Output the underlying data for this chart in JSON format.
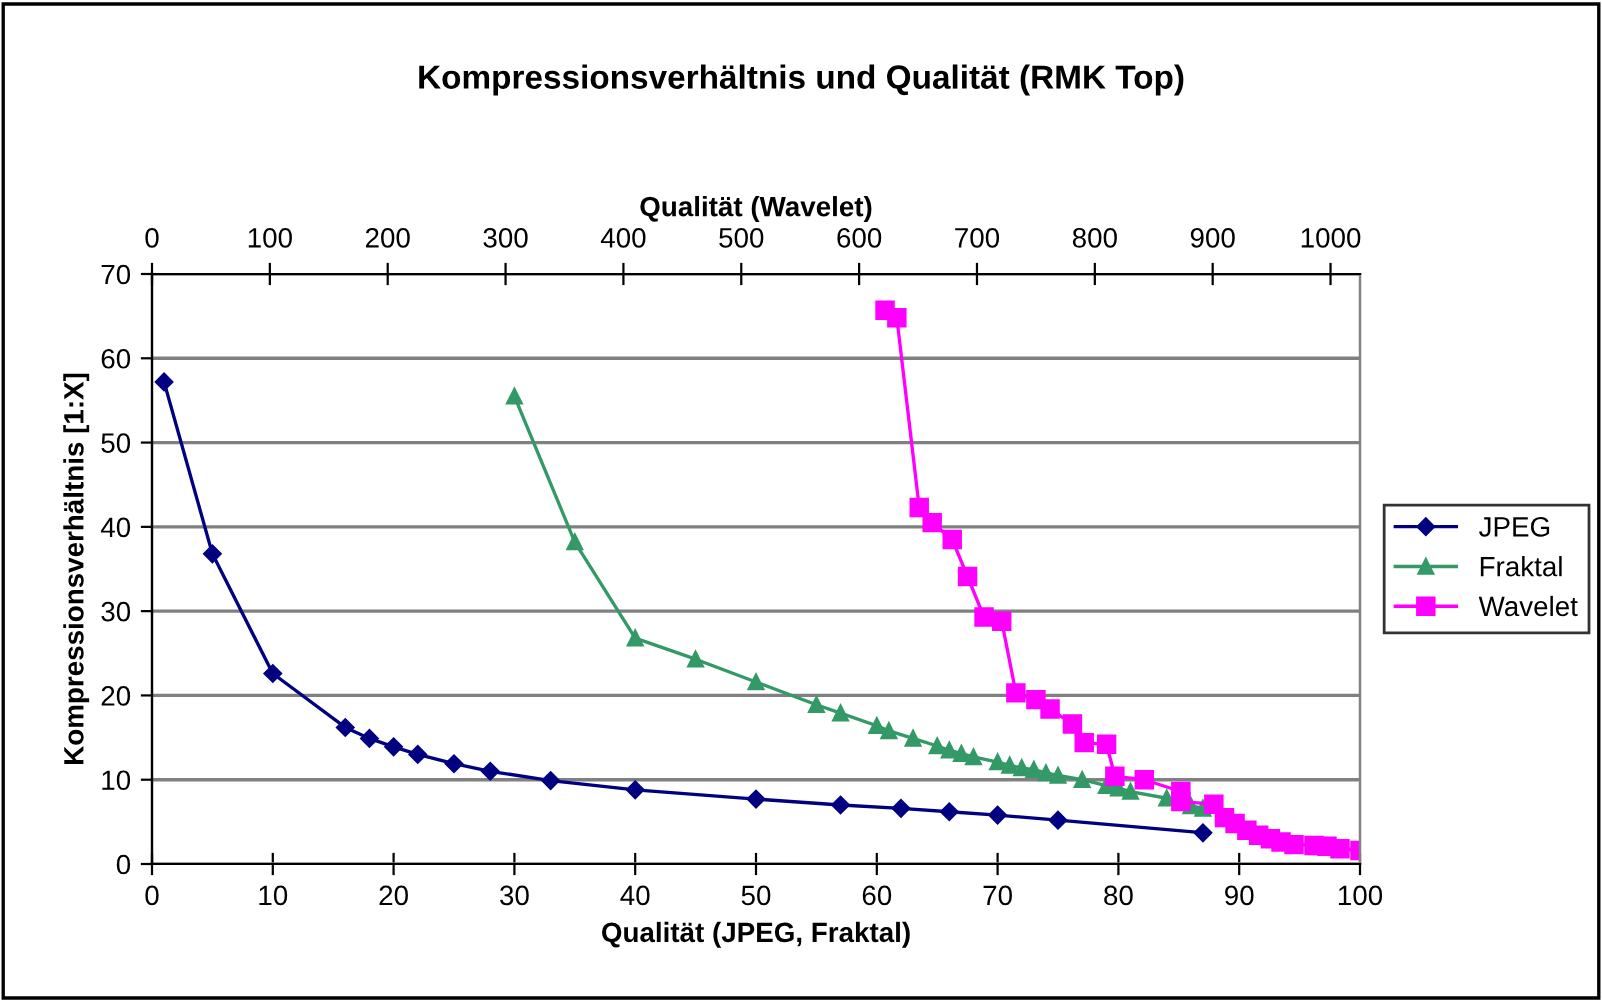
{
  "chart_data": {
    "type": "line",
    "title": "Kompressionsverhältnis und Qualität (RMK Top)",
    "xlabel": "Qualität (JPEG, Fraktal)",
    "x2label": "Qualität (Wavelet)",
    "ylabel": "Kompressionsverhältnis [1:X]",
    "xlim": [
      0,
      100
    ],
    "xticks": [
      0,
      10,
      20,
      30,
      40,
      50,
      60,
      70,
      80,
      90,
      100
    ],
    "x2lim": [
      0,
      1025
    ],
    "x2ticks": [
      0,
      100,
      200,
      300,
      400,
      500,
      600,
      700,
      800,
      900,
      1000
    ],
    "ylim": [
      0,
      70
    ],
    "yticks": [
      0,
      10,
      20,
      30,
      40,
      50,
      60,
      70
    ],
    "grid": "y",
    "legend": "right",
    "series": [
      {
        "name": "JPEG",
        "color": "#000080",
        "marker": "diamond",
        "x": [
          1,
          5,
          10,
          16,
          18,
          20,
          22,
          25,
          28,
          33,
          40,
          50,
          57,
          62,
          66,
          70,
          75,
          87
        ],
        "values": [
          57.2,
          36.8,
          22.6,
          16.2,
          14.9,
          13.9,
          13.0,
          11.9,
          11.0,
          9.9,
          8.8,
          7.7,
          7.0,
          6.6,
          6.2,
          5.8,
          5.2,
          3.7
        ]
      },
      {
        "name": "Fraktal",
        "color": "#339966",
        "marker": "triangle",
        "x": [
          30,
          35,
          40,
          45,
          50,
          55,
          57,
          60,
          61,
          63,
          65,
          66,
          67,
          68,
          70,
          71,
          72,
          73,
          74,
          75,
          77,
          79,
          80,
          81,
          84,
          86,
          87
        ],
        "values": [
          55.5,
          38.2,
          26.8,
          24.3,
          21.6,
          18.9,
          17.9,
          16.4,
          15.8,
          14.9,
          14.0,
          13.5,
          13.1,
          12.7,
          12.1,
          11.7,
          11.4,
          11.2,
          10.8,
          10.5,
          10.0,
          9.3,
          9.0,
          8.6,
          7.8,
          6.9,
          6.6
        ]
      },
      {
        "name": "Wavelet",
        "color": "#ff00ff",
        "marker": "square",
        "axis": "x2",
        "x": [
          622,
          632,
          651,
          662,
          679,
          692,
          706,
          721,
          733,
          750,
          762,
          781,
          791,
          810,
          817,
          842,
          873,
          873,
          901,
          910,
          919,
          929,
          939,
          949,
          958,
          969,
          986,
          997,
          1008,
          1025
        ],
        "values": [
          65.7,
          64.8,
          42.3,
          40.5,
          38.5,
          34.1,
          29.3,
          28.8,
          20.3,
          19.5,
          18.4,
          16.6,
          14.4,
          14.2,
          10.4,
          10.0,
          8.6,
          7.4,
          7.1,
          5.5,
          4.8,
          4.0,
          3.4,
          3.0,
          2.6,
          2.3,
          2.2,
          2.1,
          1.8,
          1.6
        ]
      }
    ]
  }
}
